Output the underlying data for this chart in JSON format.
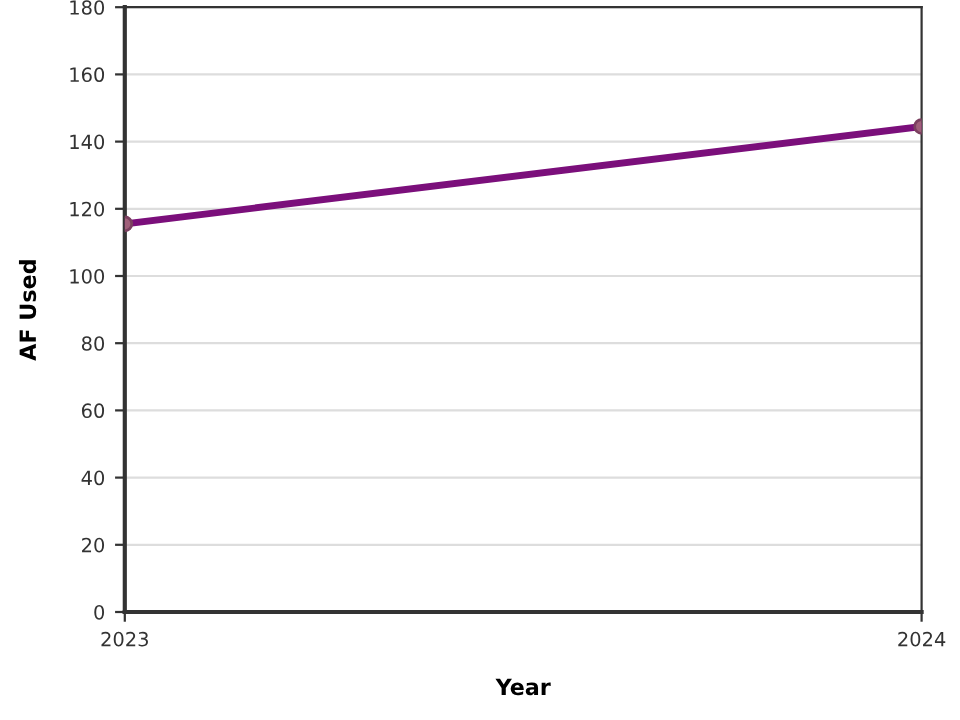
{
  "chart_data": {
    "type": "line",
    "xlabel": "Year",
    "ylabel": "AF Used",
    "x": [
      2023,
      2024
    ],
    "series": [
      {
        "color": "#7b0f7b",
        "values": [
          115.5,
          144.5
        ]
      }
    ],
    "xlim": [
      2023,
      2024
    ],
    "xticks": [
      2023,
      2024
    ],
    "ylim": [
      0,
      180
    ],
    "yticks": [
      0,
      20,
      40,
      60,
      80,
      100,
      120,
      140,
      160,
      180
    ],
    "grid": "y",
    "marker": "circle",
    "line_style": "solid"
  }
}
